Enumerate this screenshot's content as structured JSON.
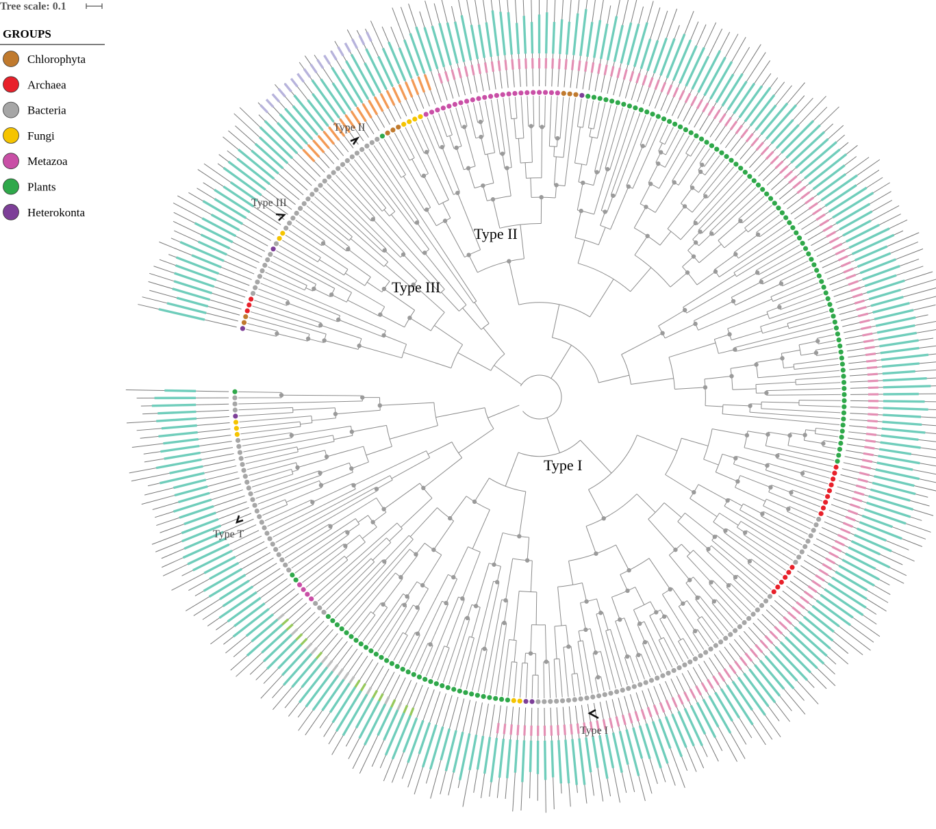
{
  "tree_scale": {
    "label": "Tree scale: 0.1"
  },
  "legend": {
    "title": "GROUPS",
    "items": [
      {
        "label": "Chlorophyta",
        "color": "#c07a2e"
      },
      {
        "label": "Archaea",
        "color": "#e8202a"
      },
      {
        "label": "Bacteria",
        "color": "#a6a6a6"
      },
      {
        "label": "Fungi",
        "color": "#f5c400"
      },
      {
        "label": "Metazoa",
        "color": "#c94fa6"
      },
      {
        "label": "Plants",
        "color": "#2fa84a"
      },
      {
        "label": "Heterokonta",
        "color": "#7d3f98"
      }
    ]
  },
  "clades": {
    "type_i": "Type I",
    "type_ii": "Type II",
    "type_iii": "Type III"
  },
  "markers": {
    "type_i": "Type I",
    "type_ii": "Type II",
    "type_iii": "Type III",
    "type_t": "Type T"
  },
  "track_colors": {
    "teal": "#6fcdbb",
    "pink": "#e48fb4",
    "orange": "#f39a55",
    "lavender": "#b7b3dc",
    "lime": "#97c95b",
    "grey": "#bdbdbd",
    "stem": "#777777"
  }
}
